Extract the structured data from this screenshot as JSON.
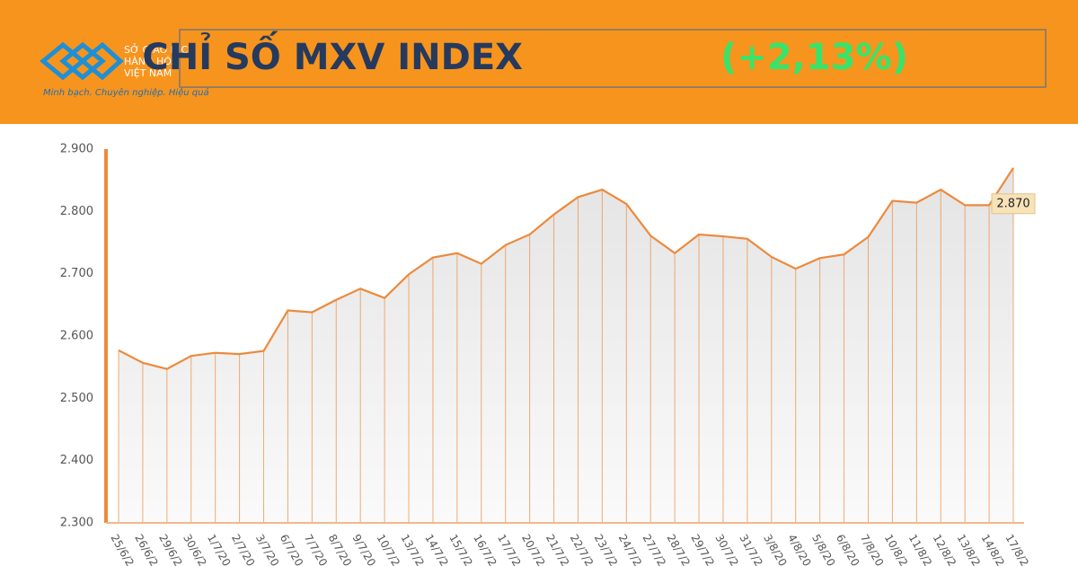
{
  "header": {
    "logo_line1": "SỞ GIAO DỊCH",
    "logo_line2": "HÀNG HÓA",
    "logo_line3": "VIỆT NAM",
    "slogan": "Minh bạch. Chuyên nghiệp. Hiệu quả",
    "title": "CHỈ SỐ MXV INDEX",
    "change": "(+2,13%)"
  },
  "chart_data": {
    "type": "line",
    "color": "#ec8a3c",
    "categories": [
      "25/6/2",
      "26/6/2",
      "29/6/2",
      "30/6/2",
      "1/7/20",
      "2/7/20",
      "3/7/20",
      "6/7/20",
      "7/7/20",
      "8/7/20",
      "9/7/20",
      "10/7/2",
      "13/7/2",
      "14/7/2",
      "15/7/2",
      "16/7/2",
      "17/7/2",
      "20/7/2",
      "21/7/2",
      "22/7/2",
      "23/7/2",
      "24/7/2",
      "27/7/2",
      "28/7/2",
      "29/7/2",
      "30/7/2",
      "31/7/2",
      "3/8/20",
      "4/8/20",
      "5/8/20",
      "6/8/20",
      "7/8/20",
      "10/8/2",
      "11/8/2",
      "12/8/2",
      "13/8/2",
      "14/8/2",
      "17/8/2"
    ],
    "values": [
      2577,
      2557,
      2547,
      2568,
      2573,
      2571,
      2576,
      2641,
      2638,
      2658,
      2676,
      2661,
      2699,
      2726,
      2733,
      2716,
      2746,
      2763,
      2795,
      2823,
      2835,
      2812,
      2761,
      2733,
      2763,
      2760,
      2756,
      2727,
      2708,
      2725,
      2731,
      2759,
      2817,
      2814,
      2835,
      2810,
      2810,
      2870
    ],
    "value_labels": [
      null,
      null,
      null,
      null,
      null,
      null,
      null,
      null,
      null,
      null,
      null,
      null,
      null,
      null,
      null,
      null,
      null,
      null,
      null,
      null,
      null,
      null,
      null,
      null,
      null,
      null,
      null,
      null,
      null,
      null,
      null,
      null,
      null,
      null,
      null,
      null,
      null,
      "2.870"
    ],
    "ylim": [
      2300,
      2900
    ],
    "yticks": [
      {
        "value": 2300,
        "label": "2.300"
      },
      {
        "value": 2400,
        "label": "2.400"
      },
      {
        "value": 2500,
        "label": "2.500"
      },
      {
        "value": 2600,
        "label": "2.600"
      },
      {
        "value": 2700,
        "label": "2.700"
      },
      {
        "value": 2800,
        "label": "2.800"
      },
      {
        "value": 2900,
        "label": "2.900"
      }
    ]
  }
}
